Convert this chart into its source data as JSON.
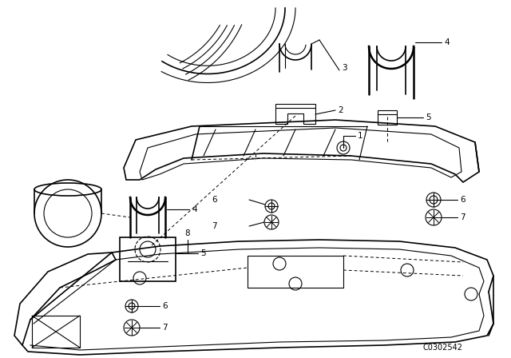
{
  "background_color": "#ffffff",
  "line_color": "#000000",
  "part_number": "C0302542",
  "fig_width": 6.4,
  "fig_height": 4.48,
  "dpi": 100
}
